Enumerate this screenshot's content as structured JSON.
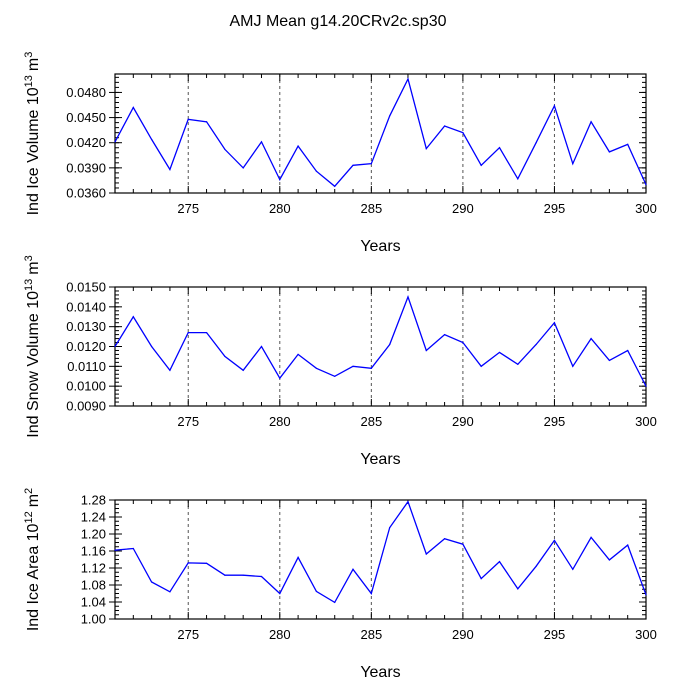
{
  "title": "AMJ Mean g14.20CRv2c.sp30",
  "colors": {
    "line": "#0000ff",
    "axis": "#000000",
    "grid": "#555555"
  },
  "chart_data": [
    {
      "type": "line",
      "ylabel_main": "Ind Ice Volume 10",
      "ylabel_exp": "13",
      "ylabel_unit": "m",
      "ylabel_unit_exp": "3",
      "xlabel": "Years",
      "xlim": [
        271,
        300
      ],
      "ylim": [
        0.036,
        0.0502
      ],
      "yticks": [
        0.036,
        0.039,
        0.042,
        0.045,
        0.048
      ],
      "ytick_labels": [
        "0.0360",
        "0.0390",
        "0.0420",
        "0.0450",
        "0.0480"
      ],
      "yminor_step": 0.0006,
      "xticks": [
        275,
        280,
        285,
        290,
        295,
        300
      ],
      "xtick_labels": [
        "275",
        "280",
        "285",
        "290",
        "295",
        "300"
      ],
      "gridlines_x": [
        275,
        280,
        285,
        290,
        295
      ],
      "x": [
        271,
        272,
        273,
        274,
        275,
        276,
        277,
        278,
        279,
        280,
        281,
        282,
        283,
        284,
        285,
        286,
        287,
        288,
        289,
        290,
        291,
        292,
        293,
        294,
        295,
        296,
        297,
        298,
        299,
        300
      ],
      "values": [
        0.0421,
        0.0462,
        0.0424,
        0.0388,
        0.0448,
        0.0445,
        0.0412,
        0.039,
        0.0421,
        0.0376,
        0.0416,
        0.0386,
        0.0368,
        0.0393,
        0.0395,
        0.0452,
        0.0496,
        0.0413,
        0.044,
        0.0432,
        0.0393,
        0.0414,
        0.0377,
        0.042,
        0.0464,
        0.0395,
        0.0445,
        0.0409,
        0.0418,
        0.037
      ]
    },
    {
      "type": "line",
      "ylabel_main": "Ind Snow Volume 10",
      "ylabel_exp": "13",
      "ylabel_unit": "m",
      "ylabel_unit_exp": "3",
      "xlabel": "Years",
      "xlim": [
        271,
        300
      ],
      "ylim": [
        0.009,
        0.015
      ],
      "yticks": [
        0.009,
        0.01,
        0.011,
        0.012,
        0.013,
        0.014,
        0.015
      ],
      "ytick_labels": [
        "0.0090",
        "0.0100",
        "0.0110",
        "0.0120",
        "0.0130",
        "0.0140",
        "0.0150"
      ],
      "yminor_step": 0.0002,
      "xticks": [
        275,
        280,
        285,
        290,
        295,
        300
      ],
      "xtick_labels": [
        "275",
        "280",
        "285",
        "290",
        "295",
        "300"
      ],
      "gridlines_x": [
        275,
        280,
        285,
        290,
        295
      ],
      "x": [
        271,
        272,
        273,
        274,
        275,
        276,
        277,
        278,
        279,
        280,
        281,
        282,
        283,
        284,
        285,
        286,
        287,
        288,
        289,
        290,
        291,
        292,
        293,
        294,
        295,
        296,
        297,
        298,
        299,
        300
      ],
      "values": [
        0.012,
        0.0135,
        0.012,
        0.0108,
        0.0127,
        0.0127,
        0.0115,
        0.0108,
        0.012,
        0.0104,
        0.0116,
        0.0109,
        0.0105,
        0.011,
        0.0109,
        0.0121,
        0.0145,
        0.0118,
        0.0126,
        0.0122,
        0.011,
        0.0117,
        0.0111,
        0.0121,
        0.0132,
        0.011,
        0.0124,
        0.0113,
        0.0118,
        0.01
      ]
    },
    {
      "type": "line",
      "ylabel_main": "Ind Ice Area 10",
      "ylabel_exp": "12",
      "ylabel_unit": "m",
      "ylabel_unit_exp": "2",
      "xlabel": "Years",
      "xlim": [
        271,
        300
      ],
      "ylim": [
        1.0,
        1.28
      ],
      "yticks": [
        1.0,
        1.04,
        1.08,
        1.12,
        1.16,
        1.2,
        1.24,
        1.28
      ],
      "ytick_labels": [
        "1.00",
        "1.04",
        "1.08",
        "1.12",
        "1.16",
        "1.20",
        "1.24",
        "1.28"
      ],
      "yminor_step": 0.01,
      "xticks": [
        275,
        280,
        285,
        290,
        295,
        300
      ],
      "xtick_labels": [
        "275",
        "280",
        "285",
        "290",
        "295",
        "300"
      ],
      "gridlines_x": [
        275,
        280,
        285,
        290,
        295
      ],
      "x": [
        271,
        272,
        273,
        274,
        275,
        276,
        277,
        278,
        279,
        280,
        281,
        282,
        283,
        284,
        285,
        286,
        287,
        288,
        289,
        290,
        291,
        292,
        293,
        294,
        295,
        296,
        297,
        298,
        299,
        300
      ],
      "values": [
        1.162,
        1.166,
        1.087,
        1.064,
        1.132,
        1.131,
        1.103,
        1.103,
        1.1,
        1.06,
        1.145,
        1.065,
        1.039,
        1.117,
        1.06,
        1.215,
        1.276,
        1.153,
        1.189,
        1.176,
        1.095,
        1.135,
        1.071,
        1.124,
        1.185,
        1.117,
        1.192,
        1.139,
        1.174,
        1.057
      ]
    }
  ]
}
